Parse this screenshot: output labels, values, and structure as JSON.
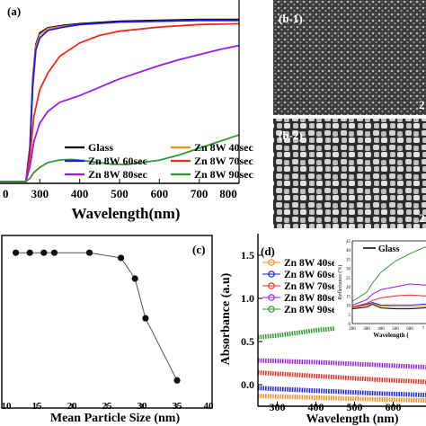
{
  "chart_data": [
    {
      "panel": "(a)",
      "type": "line",
      "xlabel": "Wavelength(nm)",
      "xlim": [
        200,
        800
      ],
      "xticks": [
        "300",
        "400",
        "500",
        "600",
        "700",
        "800"
      ],
      "left_edge_tick": "0",
      "grid": false,
      "legend_placement": "bottom",
      "series": [
        {
          "name": "Glass",
          "color": "#000000",
          "x": [
            200,
            265,
            275,
            282,
            290,
            300,
            320,
            360,
            400,
            500,
            600,
            700,
            800
          ],
          "y": [
            1,
            1,
            22,
            62,
            83,
            90,
            93,
            94.5,
            95.5,
            97,
            97.5,
            98,
            98
          ]
        },
        {
          "name": "Zn 8W 40sec",
          "color": "#ff8c1a",
          "x": [
            200,
            265,
            275,
            282,
            290,
            300,
            320,
            360,
            400,
            500,
            600,
            700,
            800
          ],
          "y": [
            1,
            1,
            21,
            60,
            82,
            89,
            92.5,
            94,
            95,
            96.5,
            97,
            97.5,
            97.5
          ]
        },
        {
          "name": "Zn 8W 60sec",
          "color": "#1a1aee",
          "x": [
            200,
            265,
            275,
            282,
            290,
            300,
            320,
            360,
            400,
            500,
            600,
            700,
            800
          ],
          "y": [
            1,
            1,
            20,
            58,
            80,
            87,
            91.5,
            93.5,
            95,
            96.5,
            97,
            97.5,
            97.5
          ]
        },
        {
          "name": "Zn 8W 70sec",
          "color": "#ee2a1a",
          "x": [
            200,
            265,
            275,
            285,
            300,
            320,
            350,
            400,
            450,
            500,
            600,
            700,
            800
          ],
          "y": [
            1,
            1,
            16,
            40,
            56,
            66,
            76,
            84,
            88.5,
            91,
            93.5,
            95,
            95.5
          ]
        },
        {
          "name": "Zn 8W 80sec",
          "color": "#9a1af0",
          "x": [
            200,
            265,
            275,
            285,
            300,
            320,
            350,
            400,
            450,
            500,
            550,
            600,
            650,
            700,
            750,
            800
          ],
          "y": [
            1,
            1,
            10,
            25,
            36,
            43,
            48.5,
            52.5,
            57.5,
            62.5,
            66.5,
            70.5,
            74,
            77,
            80,
            82.5
          ]
        },
        {
          "name": "Zn 8W 90sec",
          "color": "#2e9a2e",
          "x": [
            200,
            265,
            275,
            285,
            300,
            320,
            350,
            380,
            420,
            480,
            520,
            600,
            650,
            700,
            750,
            800
          ],
          "y": [
            1,
            1,
            3,
            6.5,
            9.5,
            12.5,
            14,
            14.3,
            13.3,
            11.5,
            11.3,
            13.8,
            17,
            21,
            25,
            29
          ]
        }
      ]
    },
    {
      "panel": "(c)",
      "type": "scatter",
      "xlabel": "Mean Particle Size (nm)",
      "xlim": [
        10,
        40
      ],
      "ylim": [
        0,
        10
      ],
      "xticks": [
        "10",
        "15",
        "20",
        "25",
        "30",
        "35",
        "40"
      ],
      "grid": false,
      "x": [
        12,
        14,
        16,
        17.5,
        22.5,
        27,
        29,
        30.5,
        35
      ],
      "y": [
        9.0,
        9.0,
        9.0,
        9.0,
        9.0,
        8.7,
        7.5,
        5.2,
        1.6
      ]
    },
    {
      "panel": "(d)",
      "type": "line",
      "xlabel": "Wavelength (nm)",
      "ylabel": "Absorbance (a.u)",
      "xlim": [
        250,
        750
      ],
      "ylim": [
        -0.25,
        1.75
      ],
      "xticks": [
        "300",
        "400",
        "500",
        "600",
        "7"
      ],
      "yticks": [
        "0.0",
        "0.5",
        "1.0",
        "1.5"
      ],
      "grid": false,
      "legend_placement": "top-left",
      "series": [
        {
          "name": "Zn 8W 40sec",
          "color": "#ff8c1a",
          "x": [
            250,
            400,
            550,
            750
          ],
          "y": [
            -0.13,
            -0.15,
            -0.17,
            -0.19
          ]
        },
        {
          "name": "Zn 8W 60sec",
          "color": "#1a1aee",
          "x": [
            250,
            400,
            550,
            750
          ],
          "y": [
            -0.04,
            -0.07,
            -0.1,
            -0.13
          ]
        },
        {
          "name": "Zn 8W 70sec",
          "color": "#ee2a1a",
          "x": [
            250,
            400,
            550,
            750
          ],
          "y": [
            0.14,
            0.1,
            0.06,
            0.02
          ]
        },
        {
          "name": "Zn 8W 80sec",
          "color": "#9a1af0",
          "x": [
            250,
            400,
            550,
            750
          ],
          "y": [
            0.28,
            0.26,
            0.23,
            0.19
          ]
        },
        {
          "name": "Zn 8W 90sec",
          "color": "#2e9a2e",
          "x": [
            250,
            300,
            400,
            470,
            550,
            650,
            750
          ],
          "y": [
            0.55,
            0.57,
            0.63,
            0.66,
            0.64,
            0.57,
            0.49
          ]
        }
      ],
      "inset": {
        "ylabel": "Reflectance (%)",
        "xlabel": "Wavelength (",
        "xlim": [
          200,
          800
        ],
        "ylim": [
          0,
          45
        ],
        "xticks": [
          "200",
          "300",
          "400",
          "500",
          "600",
          "7"
        ],
        "yticks": [
          "0",
          "5",
          "10",
          "15",
          "20",
          "25",
          "30",
          "35",
          "40",
          "45"
        ],
        "legend": "Glass",
        "series": [
          {
            "name": "Glass",
            "color": "#000000",
            "x": [
              200,
              300,
              340,
              400,
              500,
              600,
              700,
              800
            ],
            "y": [
              8,
              9,
              10.5,
              8.5,
              8,
              8,
              8.5,
              9
            ]
          },
          {
            "name": "Zn 8W 40sec",
            "color": "#ff8c1a",
            "x": [
              200,
              300,
              340,
              400,
              500,
              600,
              700,
              800
            ],
            "y": [
              8.5,
              10,
              11,
              9.5,
              9,
              9,
              9.5,
              10
            ]
          },
          {
            "name": "Zn 8W 60sec",
            "color": "#1a1aee",
            "x": [
              200,
              300,
              340,
              400,
              500,
              600,
              700,
              800
            ],
            "y": [
              9,
              10.5,
              11.5,
              10,
              10,
              10,
              10.5,
              11
            ]
          },
          {
            "name": "Zn 8W 70sec",
            "color": "#ee2a1a",
            "x": [
              200,
              300,
              340,
              400,
              500,
              600,
              700,
              800
            ],
            "y": [
              9,
              11,
              12.5,
              14,
              15,
              15.5,
              15,
              15
            ]
          },
          {
            "name": "Zn 8W 80sec",
            "color": "#9a1af0",
            "x": [
              200,
              300,
              340,
              400,
              500,
              600,
              700,
              800
            ],
            "y": [
              10,
              13,
              16,
              18.5,
              20,
              21.5,
              21,
              21
            ]
          },
          {
            "name": "Zn 8W 90sec",
            "color": "#2e9a2e",
            "x": [
              200,
              300,
              340,
              400,
              500,
              600,
              700,
              800
            ],
            "y": [
              12,
              17,
              22,
              28,
              34,
              38,
              41.5,
              42
            ]
          }
        ]
      }
    }
  ],
  "images": [
    {
      "panel": "(b-1)",
      "scale_text": "2"
    },
    {
      "panel": "(b-2)",
      "scale_text": "2"
    }
  ]
}
